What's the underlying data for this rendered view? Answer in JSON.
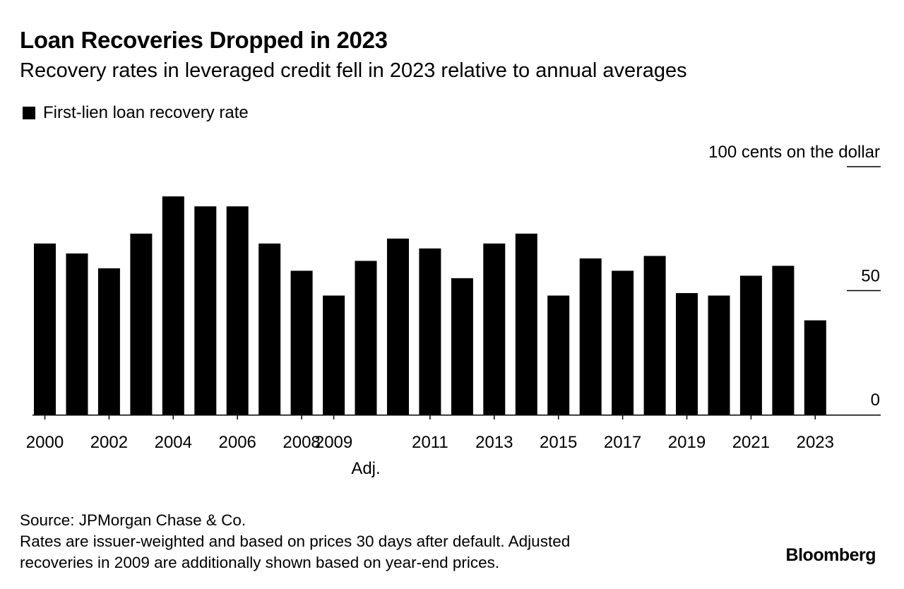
{
  "header": {
    "title": "Loan Recoveries Dropped in 2023",
    "subtitle": "Recovery rates in leveraged credit fell in 2023 relative to annual averages"
  },
  "legend": {
    "label": "First-lien loan recovery rate"
  },
  "footer": {
    "source": "Source: JPMorgan Chase & Co.",
    "note_line1": "Rates are issuer-weighted and based on prices 30 days after default. Adjusted",
    "note_line2": "recoveries in 2009 are additionally shown based on year-end prices.",
    "brand": "Bloomberg"
  },
  "chart_data": {
    "type": "bar",
    "categories": [
      "2000",
      "2001",
      "2002",
      "2003",
      "2004",
      "2005",
      "2006",
      "2007",
      "2008",
      "2009",
      "2009 Adj.",
      "2010",
      "2011",
      "2012",
      "2013",
      "2014",
      "2015",
      "2016",
      "2017",
      "2018",
      "2019",
      "2020",
      "2021",
      "2022",
      "2023"
    ],
    "series": [
      {
        "name": "First-lien loan recovery rate",
        "values": [
          69,
          65,
          59,
          73,
          88,
          84,
          84,
          69,
          58,
          48,
          62,
          71,
          67,
          55,
          69,
          73,
          48,
          63,
          58,
          64,
          49,
          48,
          56,
          60,
          38
        ]
      }
    ],
    "x_tick_labels": [
      "2000",
      "2002",
      "2004",
      "2006",
      "2008",
      "2009",
      "2011",
      "2013",
      "2015",
      "2017",
      "2019",
      "2021",
      "2023"
    ],
    "x_tick_sublabel": "Adj.",
    "y_tick_labels": [
      "0",
      "50",
      "100 cents on the dollar"
    ],
    "y_ticks": [
      0,
      50,
      100
    ],
    "ylim": [
      0,
      100
    ],
    "y_axis_position": "right",
    "grid": false,
    "legend_position": "top-left",
    "colors": {
      "bars": "#000000",
      "axis": "#000000"
    }
  }
}
